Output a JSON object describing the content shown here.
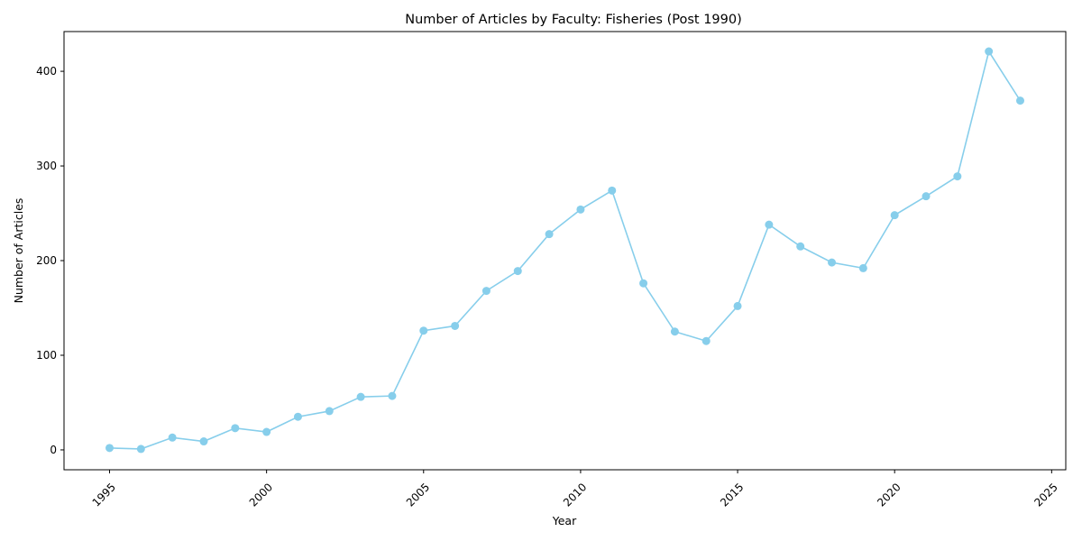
{
  "chart_data": {
    "type": "line",
    "title": "Number of Articles by Faculty: Fisheries (Post 1990)",
    "xlabel": "Year",
    "ylabel": "Number of Articles",
    "xlim": [
      1993.55,
      2025.45
    ],
    "ylim": [
      -21,
      442
    ],
    "x_ticks": [
      1995,
      2000,
      2005,
      2010,
      2015,
      2020,
      2025
    ],
    "y_ticks": [
      0,
      100,
      200,
      300,
      400
    ],
    "grid": false,
    "legend": "none",
    "line_color": "#87CEEB",
    "series": [
      {
        "x": [
          1995,
          1996,
          1997,
          1998,
          1999,
          2000,
          2001,
          2002,
          2003,
          2004,
          2005,
          2006,
          2007,
          2008,
          2009,
          2010,
          2011,
          2012,
          2013,
          2014,
          2015,
          2016,
          2017,
          2018,
          2019,
          2020,
          2021,
          2022,
          2023,
          2024
        ],
        "values": [
          2,
          1,
          13,
          9,
          23,
          19,
          35,
          41,
          56,
          57,
          126,
          131,
          168,
          189,
          228,
          254,
          274,
          176,
          125,
          115,
          152,
          238,
          215,
          198,
          192,
          248,
          268,
          289,
          421,
          369
        ]
      }
    ]
  }
}
